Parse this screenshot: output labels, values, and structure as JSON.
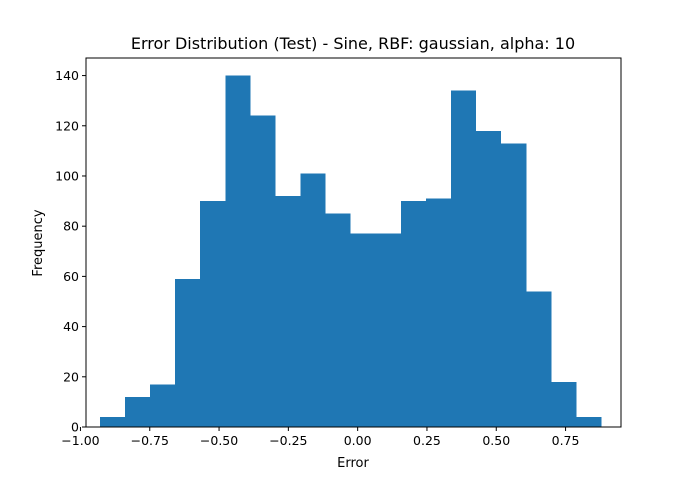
{
  "chart_data": {
    "type": "bar",
    "title": "Error Distribution (Test) - Sine, RBF: gaussian, alpha: 10",
    "xlabel": "Error",
    "ylabel": "Frequency",
    "xlim": [
      -0.98,
      0.95
    ],
    "ylim": [
      0,
      147
    ],
    "xticks": [
      -1.0,
      -0.75,
      -0.5,
      -0.25,
      0.0,
      0.25,
      0.5,
      0.75
    ],
    "xtick_labels": [
      "−1.00",
      "−0.75",
      "−0.50",
      "−0.25",
      "0.00",
      "0.25",
      "0.50",
      "0.75"
    ],
    "yticks": [
      0,
      20,
      40,
      60,
      80,
      100,
      120,
      140
    ],
    "ytick_labels": [
      "0",
      "20",
      "40",
      "60",
      "80",
      "100",
      "120",
      "140"
    ],
    "bin_edges": [
      -0.93,
      -0.8395,
      -0.749,
      -0.6585,
      -0.568,
      -0.4775,
      -0.387,
      -0.2965,
      -0.206,
      -0.1155,
      -0.025,
      0.0655,
      0.156,
      0.2465,
      0.337,
      0.4275,
      0.518,
      0.6085,
      0.699,
      0.7895,
      0.88
    ],
    "values": [
      4,
      12,
      17,
      59,
      90,
      140,
      124,
      92,
      101,
      85,
      77,
      77,
      90,
      91,
      134,
      118,
      113,
      54,
      18,
      4
    ],
    "bar_color": "#1f77b4",
    "grid": false,
    "legend": "none"
  }
}
